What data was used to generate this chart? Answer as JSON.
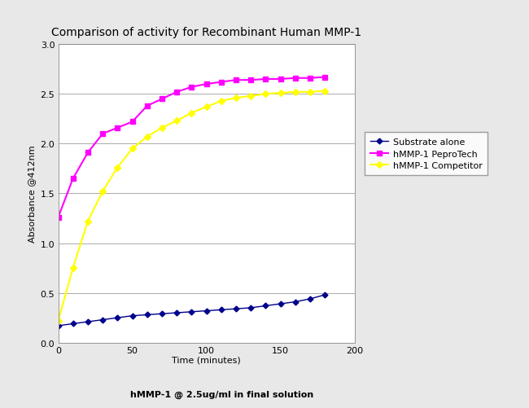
{
  "title": "Comparison of activity for Recombinant Human MMP-1",
  "xlabel": "Time (minutes)",
  "xlabel2": "hMMP-1 @ 2.5ug/ml in final solution",
  "ylabel": "Absorbance @412nm",
  "xlim": [
    0,
    200
  ],
  "ylim": [
    0,
    3
  ],
  "xticks": [
    0,
    50,
    100,
    150,
    200
  ],
  "yticks": [
    0,
    0.5,
    1.0,
    1.5,
    2.0,
    2.5,
    3.0
  ],
  "background_color": "#e8e8e8",
  "plot_bg_color": "#ffffff",
  "substrate_x": [
    0,
    10,
    20,
    30,
    40,
    50,
    60,
    70,
    80,
    90,
    100,
    110,
    120,
    130,
    140,
    150,
    160,
    170,
    180
  ],
  "substrate_y": [
    0.17,
    0.19,
    0.21,
    0.23,
    0.25,
    0.27,
    0.28,
    0.29,
    0.3,
    0.31,
    0.32,
    0.33,
    0.34,
    0.35,
    0.37,
    0.39,
    0.41,
    0.44,
    0.48
  ],
  "substrate_color": "#00008B",
  "substrate_label": "Substrate alone",
  "pepro_x": [
    0,
    10,
    20,
    30,
    40,
    50,
    60,
    70,
    80,
    90,
    100,
    110,
    120,
    130,
    140,
    150,
    160,
    170,
    180
  ],
  "pepro_y": [
    1.26,
    1.65,
    1.91,
    2.1,
    2.16,
    2.22,
    2.38,
    2.45,
    2.52,
    2.57,
    2.6,
    2.62,
    2.64,
    2.64,
    2.65,
    2.65,
    2.66,
    2.66,
    2.67
  ],
  "pepro_color": "#FF00FF",
  "pepro_label": "hMMP-1 PeproTech",
  "comp_x": [
    0,
    10,
    20,
    30,
    40,
    50,
    60,
    70,
    80,
    90,
    100,
    110,
    120,
    130,
    140,
    150,
    160,
    170,
    180
  ],
  "comp_y": [
    0.22,
    0.75,
    1.22,
    1.52,
    1.76,
    1.95,
    2.07,
    2.16,
    2.23,
    2.31,
    2.37,
    2.43,
    2.46,
    2.48,
    2.5,
    2.51,
    2.52,
    2.52,
    2.53
  ],
  "comp_color": "#FFFF00",
  "comp_label": "hMMP-1 Competitor",
  "grid_color": "#aaaaaa",
  "title_fontsize": 10,
  "label_fontsize": 8,
  "tick_fontsize": 8,
  "legend_fontsize": 8
}
